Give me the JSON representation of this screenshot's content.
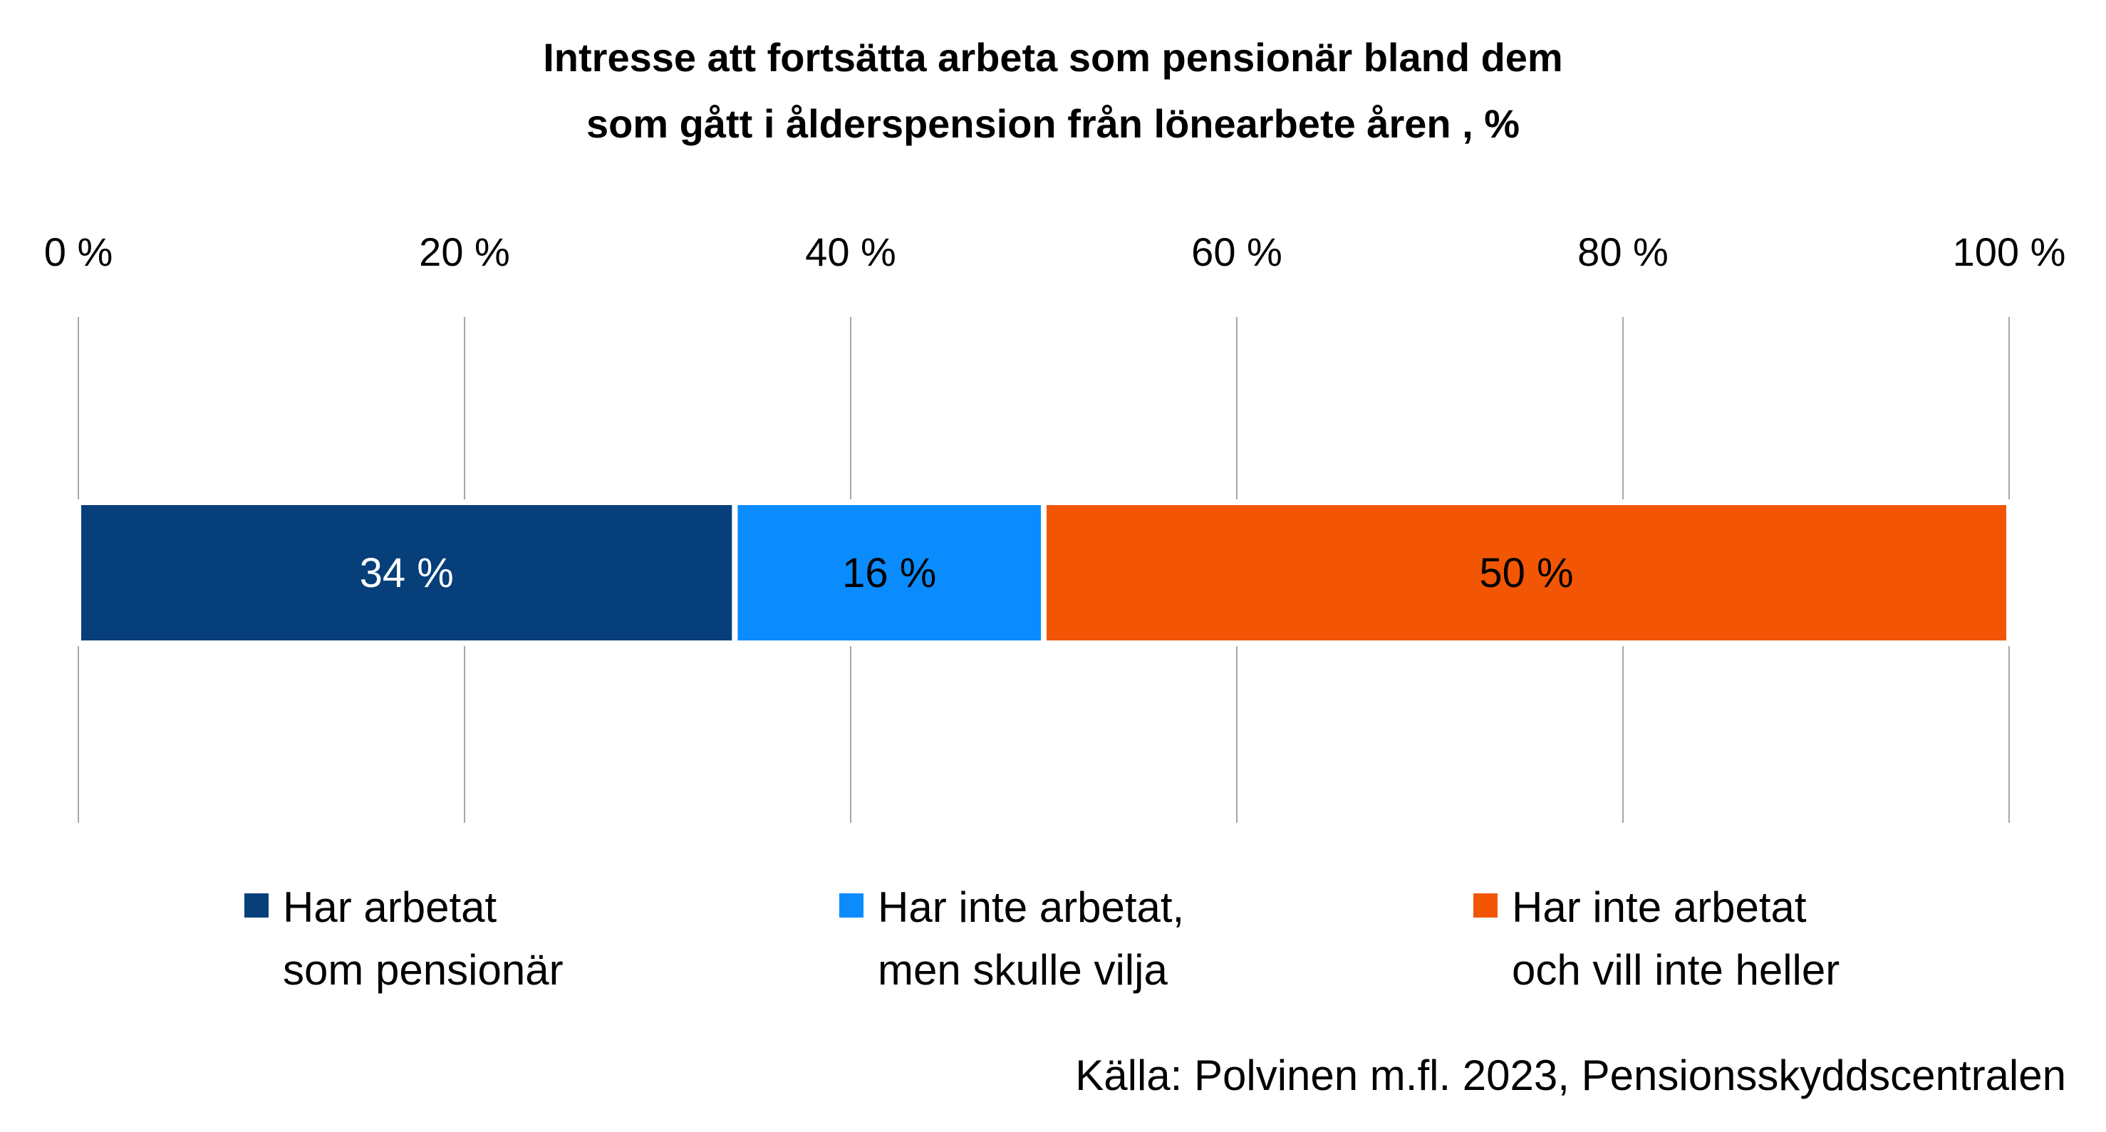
{
  "chart_data": {
    "type": "bar",
    "orientation": "horizontal",
    "stacked": true,
    "title_lines": [
      "Intresse att fortsätta arbeta som pensionär bland dem",
      "som gått i ålderspension från lönearbete åren , %"
    ],
    "x_ticks": [
      "0 %",
      "20 %",
      "40 %",
      "60 %",
      "80 %",
      "100 %"
    ],
    "xlim": [
      0,
      100
    ],
    "x_axis_position": "top",
    "grid": true,
    "legend_position": "bottom",
    "series": [
      {
        "name_lines": [
          "Har arbetat",
          "som pensionär"
        ],
        "value": 34,
        "label": "34 %",
        "color": "#063f79",
        "label_color": "#ffffff"
      },
      {
        "name_lines": [
          "Har inte arbetat,",
          "men skulle vilja"
        ],
        "value": 16,
        "label": "16 %",
        "color": "#0a8cff",
        "label_color": "#000000"
      },
      {
        "name_lines": [
          "Har inte arbetat",
          "och vill inte heller"
        ],
        "value": 50,
        "label": "50 %",
        "color": "#f25604",
        "label_color": "#000000"
      }
    ],
    "source": "Källa: Polvinen m.fl. 2023, Pensionsskyddscentralen"
  }
}
